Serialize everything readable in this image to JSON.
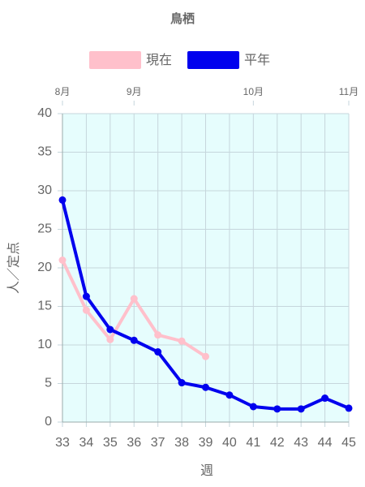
{
  "chart_data": {
    "type": "line",
    "title": "鳥栖",
    "x": [
      33,
      34,
      35,
      36,
      37,
      38,
      39,
      40,
      41,
      42,
      43,
      44,
      45
    ],
    "series": [
      {
        "name": "現在",
        "color": "#ffc0cb",
        "values": [
          21,
          14.5,
          10.7,
          16,
          11.3,
          10.5,
          8.5,
          null,
          null,
          null,
          null,
          null,
          null
        ]
      },
      {
        "name": "平年",
        "color": "#0000ee",
        "values": [
          28.8,
          16.3,
          12,
          10.6,
          9.1,
          5.1,
          4.5,
          3.5,
          2,
          1.7,
          1.7,
          3.1,
          1.8
        ]
      }
    ],
    "xlabel": "週",
    "ylabel": "人／定点",
    "xlim": [
      33,
      45
    ],
    "xticks": [
      33,
      34,
      35,
      36,
      37,
      38,
      39,
      40,
      41,
      42,
      43,
      44,
      45
    ],
    "x2ticks": [
      {
        "value": 33,
        "label": "8月"
      },
      {
        "value": 36,
        "label": "9月"
      },
      {
        "value": 41,
        "label": "10月"
      },
      {
        "value": 45,
        "label": "11月"
      }
    ],
    "ylim": [
      0,
      40
    ],
    "yticks": [
      0,
      5,
      10,
      15,
      20,
      25,
      30,
      35,
      40
    ],
    "grid": true,
    "legend": "top"
  }
}
